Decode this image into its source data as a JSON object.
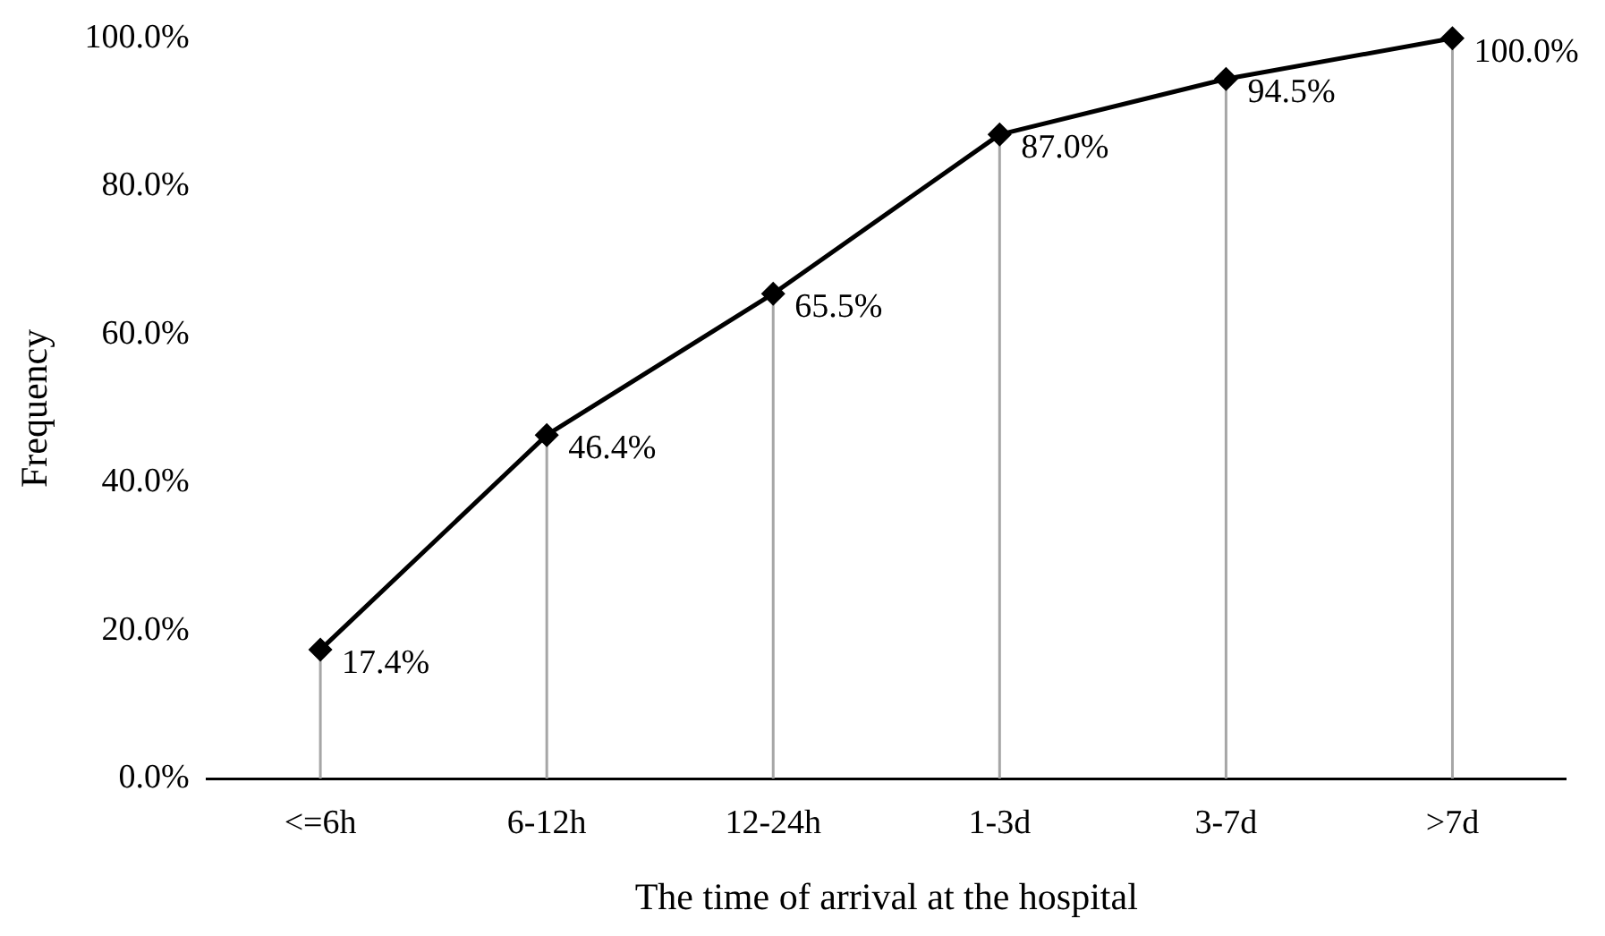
{
  "chart_data": {
    "type": "line",
    "xlabel": "The time of arrival at the hospital",
    "ylabel": "Frequency",
    "categories": [
      "<=6h",
      "6-12h",
      "12-24h",
      "1-3d",
      "3-7d",
      ">7d"
    ],
    "series": [
      {
        "color": "#000000",
        "values": [
          17.4,
          46.4,
          65.5,
          87.0,
          94.5,
          100.0
        ],
        "value_labels": [
          "17.4%",
          "46.4%",
          "65.5%",
          "87.0%",
          "94.5%",
          "100.0%"
        ]
      }
    ],
    "ylim": [
      0,
      100
    ],
    "yticks": [
      {
        "value": 0,
        "label": "0.0%"
      },
      {
        "value": 20,
        "label": "20.0%"
      },
      {
        "value": 40,
        "label": "40.0%"
      },
      {
        "value": 60,
        "label": "60.0%"
      },
      {
        "value": 80,
        "label": "80.0%"
      },
      {
        "value": 100,
        "label": "100.0%"
      }
    ],
    "grid": "x",
    "legend": false,
    "marker": "diamond",
    "line_style": "solid"
  }
}
